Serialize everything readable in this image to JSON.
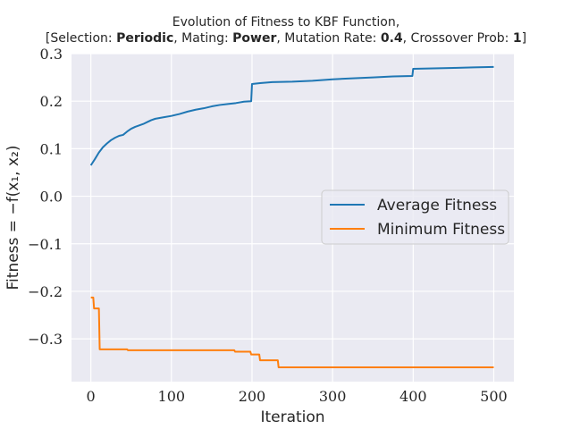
{
  "title": {
    "line1": "Evolution of Fitness to KBF Function,",
    "line2_parts": [
      {
        "text": "[Selection: ",
        "bold": false
      },
      {
        "text": "Periodic",
        "bold": true
      },
      {
        "text": ", Mating: ",
        "bold": false
      },
      {
        "text": "Power",
        "bold": true
      },
      {
        "text": ", Mutation Rate: ",
        "bold": false
      },
      {
        "text": "0.4",
        "bold": true
      },
      {
        "text": ", Crossover Prob: ",
        "bold": false
      },
      {
        "text": "1",
        "bold": true
      },
      {
        "text": "]",
        "bold": false
      }
    ]
  },
  "colors": {
    "background": "#eaeaf2",
    "grid": "#ffffff",
    "average": "#1f77b4",
    "minimum": "#ff7f0e"
  },
  "chart_data": {
    "type": "line",
    "xlabel": "Iteration",
    "ylabel": "Fitness = −f(x₁, x₂)",
    "xlim": [
      -24,
      525
    ],
    "ylim": [
      -0.39,
      0.3
    ],
    "xticks": [
      0,
      100,
      200,
      300,
      400,
      500
    ],
    "xtick_labels": [
      "0",
      "100",
      "200",
      "300",
      "400",
      "500"
    ],
    "yticks": [
      0.3,
      0.2,
      0.1,
      0.0,
      -0.1,
      -0.2,
      -0.3
    ],
    "ytick_labels": [
      "0.3",
      "0.2",
      "0.1",
      "0.0",
      "−0.1",
      "−0.2",
      "−0.3"
    ],
    "grid": true,
    "legend_position": "center-right",
    "series": [
      {
        "name": "Average Fitness",
        "color": "#1f77b4",
        "points": [
          [
            0,
            0.065
          ],
          [
            5,
            0.078
          ],
          [
            10,
            0.092
          ],
          [
            15,
            0.103
          ],
          [
            20,
            0.111
          ],
          [
            25,
            0.118
          ],
          [
            30,
            0.123
          ],
          [
            35,
            0.127
          ],
          [
            40,
            0.129
          ],
          [
            45,
            0.136
          ],
          [
            50,
            0.142
          ],
          [
            55,
            0.146
          ],
          [
            60,
            0.149
          ],
          [
            65,
            0.152
          ],
          [
            70,
            0.156
          ],
          [
            75,
            0.16
          ],
          [
            80,
            0.163
          ],
          [
            90,
            0.166
          ],
          [
            100,
            0.169
          ],
          [
            110,
            0.173
          ],
          [
            120,
            0.178
          ],
          [
            130,
            0.182
          ],
          [
            140,
            0.185
          ],
          [
            150,
            0.189
          ],
          [
            160,
            0.192
          ],
          [
            170,
            0.194
          ],
          [
            180,
            0.196
          ],
          [
            190,
            0.199
          ],
          [
            199,
            0.2
          ],
          [
            200,
            0.236
          ],
          [
            210,
            0.238
          ],
          [
            225,
            0.24
          ],
          [
            250,
            0.241
          ],
          [
            275,
            0.243
          ],
          [
            300,
            0.246
          ],
          [
            325,
            0.248
          ],
          [
            350,
            0.25
          ],
          [
            375,
            0.252
          ],
          [
            399,
            0.253
          ],
          [
            400,
            0.268
          ],
          [
            425,
            0.269
          ],
          [
            450,
            0.27
          ],
          [
            475,
            0.271
          ],
          [
            500,
            0.272
          ]
        ]
      },
      {
        "name": "Minimum Fitness",
        "color": "#ff7f0e",
        "points": [
          [
            0,
            -0.213
          ],
          [
            3,
            -0.213
          ],
          [
            4,
            -0.236
          ],
          [
            10,
            -0.236
          ],
          [
            11,
            -0.322
          ],
          [
            45,
            -0.322
          ],
          [
            46,
            -0.324
          ],
          [
            178,
            -0.324
          ],
          [
            179,
            -0.327
          ],
          [
            198,
            -0.327
          ],
          [
            199,
            -0.333
          ],
          [
            209,
            -0.333
          ],
          [
            210,
            -0.345
          ],
          [
            232,
            -0.345
          ],
          [
            233,
            -0.36
          ],
          [
            500,
            -0.36
          ]
        ]
      }
    ]
  }
}
